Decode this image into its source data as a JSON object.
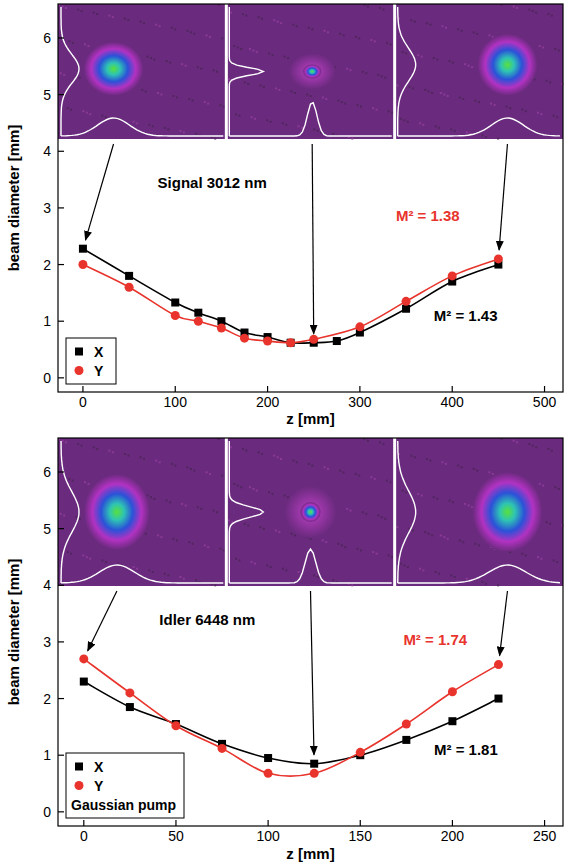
{
  "chart_data": [
    {
      "type": "line",
      "xlabel": "z [mm]",
      "ylabel": "beam diameter [mm]",
      "xlim": [
        -27,
        520
      ],
      "ylim": [
        -0.25,
        6.6
      ],
      "xticks": [
        0,
        100,
        200,
        300,
        400,
        500
      ],
      "yticks": [
        0,
        1,
        2,
        3,
        4,
        5,
        6
      ],
      "legend": "lower left",
      "annotations": [
        {
          "text": "Signal 3012 nm"
        },
        {
          "text": "M² = 1.38",
          "color": "#e8342c"
        },
        {
          "text": "M² = 1.43",
          "color": "#000000"
        }
      ],
      "series": [
        {
          "name": "X",
          "color": "#000000",
          "marker": "square",
          "x": [
            0,
            50,
            100,
            125,
            150,
            175,
            200,
            225,
            250,
            275,
            300,
            350,
            400,
            450
          ],
          "values": [
            2.28,
            1.8,
            1.33,
            1.15,
            1.0,
            0.8,
            0.72,
            0.62,
            0.62,
            0.65,
            0.8,
            1.22,
            1.7,
            2.0
          ]
        },
        {
          "name": "Y",
          "color": "#e8342c",
          "marker": "circle",
          "x": [
            0,
            50,
            100,
            125,
            150,
            175,
            200,
            225,
            250,
            300,
            350,
            400,
            450
          ],
          "values": [
            2.0,
            1.6,
            1.1,
            1.0,
            0.88,
            0.7,
            0.65,
            0.62,
            0.68,
            0.9,
            1.35,
            1.8,
            2.1
          ]
        }
      ]
    },
    {
      "type": "line",
      "xlabel": "z [mm]",
      "ylabel": "beam diameter [mm]",
      "subtitle": "Gaussian pump",
      "xlim": [
        -14,
        260
      ],
      "ylim": [
        -0.25,
        6.6
      ],
      "xticks": [
        0,
        50,
        100,
        150,
        200,
        250
      ],
      "yticks": [
        0,
        1,
        2,
        3,
        4,
        5,
        6
      ],
      "legend": "lower left",
      "annotations": [
        {
          "text": "Idler 6448 nm"
        },
        {
          "text": "M² = 1.74",
          "color": "#e8342c"
        },
        {
          "text": "M² = 1.81",
          "color": "#000000"
        }
      ],
      "series": [
        {
          "name": "X",
          "color": "#000000",
          "marker": "square",
          "x": [
            0,
            25,
            50,
            75,
            100,
            125,
            150,
            175,
            200,
            225
          ],
          "values": [
            2.3,
            1.85,
            1.55,
            1.2,
            0.95,
            0.85,
            1.0,
            1.27,
            1.6,
            2.0
          ]
        },
        {
          "name": "Y",
          "color": "#e8342c",
          "marker": "circle",
          "x": [
            0,
            25,
            50,
            75,
            100,
            125,
            150,
            175,
            200,
            225
          ],
          "values": [
            2.7,
            2.1,
            1.52,
            1.12,
            0.68,
            0.68,
            1.05,
            1.55,
            2.12,
            2.6
          ]
        }
      ]
    }
  ]
}
